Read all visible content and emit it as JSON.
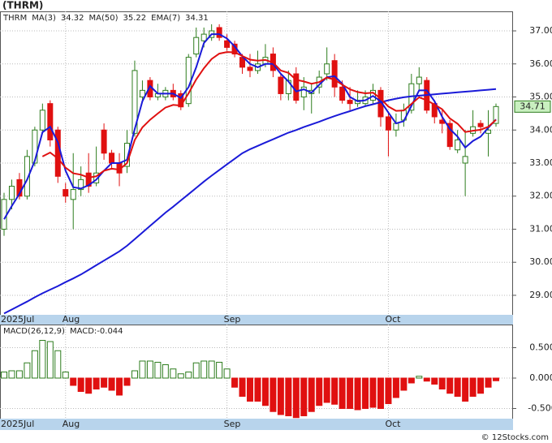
{
  "chart_data": {
    "type": "candlestick",
    "title": "(THRM)",
    "symbol": "THRM",
    "categories": [
      "2025Jul",
      null,
      null,
      null,
      null,
      null,
      null,
      null,
      "Aug",
      null,
      null,
      null,
      null,
      null,
      null,
      null,
      null,
      null,
      null,
      null,
      null,
      null,
      null,
      null,
      null,
      null,
      null,
      null,
      null,
      "Sep",
      null,
      null,
      null,
      null,
      null,
      null,
      null,
      null,
      null,
      null,
      null,
      null,
      null,
      null,
      null,
      null,
      null,
      null,
      null,
      null,
      "Oct",
      null,
      null,
      null,
      null,
      null,
      null,
      null,
      null,
      null,
      null,
      null,
      null,
      null,
      null
    ],
    "open": [
      31.0,
      31.9,
      32.5,
      32.0,
      33.0,
      34.0,
      34.8,
      34.0,
      32.2,
      31.9,
      32.2,
      32.7,
      32.4,
      34.0,
      33.3,
      33.0,
      32.9,
      33.9,
      35.0,
      35.5,
      35.0,
      35.0,
      35.2,
      35.1,
      34.8,
      36.3,
      36.7,
      36.8,
      37.1,
      36.7,
      36.6,
      36.2,
      35.9,
      35.8,
      36.0,
      36.3,
      35.6,
      35.1,
      35.7,
      35.0,
      35.1,
      35.3,
      35.7,
      36.1,
      35.3,
      34.9,
      34.8,
      34.8,
      34.9,
      35.2,
      34.4,
      34.0,
      34.3,
      34.6,
      35.4,
      35.5,
      34.8,
      34.3,
      34.2,
      33.4,
      33.0,
      33.9,
      34.2,
      33.9,
      34.2
    ],
    "high": [
      32.1,
      32.5,
      32.7,
      33.4,
      34.1,
      34.8,
      34.9,
      34.1,
      32.4,
      33.3,
      32.9,
      33.3,
      33.5,
      34.2,
      33.4,
      33.3,
      34.0,
      36.1,
      35.5,
      35.6,
      35.4,
      35.3,
      35.4,
      35.2,
      36.3,
      37.1,
      37.1,
      37.2,
      37.2,
      36.9,
      36.7,
      36.3,
      36.3,
      36.4,
      36.6,
      36.5,
      35.7,
      35.8,
      35.9,
      35.6,
      35.4,
      35.8,
      36.5,
      36.3,
      35.5,
      35.3,
      35.2,
      35.2,
      35.4,
      35.3,
      34.5,
      34.5,
      34.8,
      35.7,
      35.9,
      35.6,
      34.9,
      34.6,
      34.3,
      34.0,
      34.0,
      34.6,
      34.3,
      34.6,
      34.8
    ],
    "low": [
      30.8,
      31.6,
      31.9,
      31.9,
      32.9,
      33.9,
      33.5,
      32.4,
      31.8,
      31.0,
      32.0,
      32.1,
      32.3,
      33.1,
      32.8,
      32.3,
      32.7,
      33.8,
      34.9,
      34.9,
      34.9,
      34.9,
      34.9,
      34.6,
      34.7,
      36.2,
      36.5,
      36.7,
      36.7,
      36.4,
      36.2,
      35.7,
      35.6,
      35.7,
      35.9,
      35.6,
      34.9,
      34.9,
      34.8,
      34.6,
      34.5,
      35.1,
      35.5,
      35.0,
      34.8,
      34.6,
      34.7,
      34.7,
      34.8,
      34.1,
      33.2,
      33.8,
      34.1,
      34.5,
      35.2,
      34.5,
      34.2,
      33.9,
      33.4,
      33.3,
      32.0,
      33.8,
      33.9,
      33.2,
      34.1
    ],
    "close": [
      31.9,
      32.3,
      32.0,
      33.2,
      34.0,
      34.6,
      33.7,
      32.6,
      32.0,
      32.2,
      32.5,
      32.3,
      32.7,
      33.3,
      33.0,
      32.7,
      33.6,
      35.8,
      35.2,
      35.0,
      35.1,
      35.2,
      35.0,
      34.7,
      36.2,
      36.8,
      36.9,
      37.0,
      36.8,
      36.5,
      36.3,
      35.9,
      35.8,
      36.0,
      36.2,
      35.8,
      35.1,
      35.5,
      34.9,
      35.3,
      35.2,
      35.6,
      36.0,
      35.3,
      34.9,
      34.8,
      34.9,
      35.0,
      35.2,
      34.4,
      34.0,
      34.2,
      34.6,
      35.4,
      35.6,
      34.6,
      34.4,
      34.2,
      33.5,
      33.7,
      33.2,
      34.1,
      34.1,
      34.0,
      34.71
    ],
    "up_color": "#2e7d1e",
    "down_color": "#e01010",
    "ylim": [
      28.41,
      37.59
    ],
    "yticks": [
      {
        "value": 29,
        "label": "29.00"
      },
      {
        "value": 30,
        "label": "30.00"
      },
      {
        "value": 31,
        "label": "31.00"
      },
      {
        "value": 32,
        "label": "32.00"
      },
      {
        "value": 33,
        "label": "33.00"
      },
      {
        "value": 34,
        "label": "34.00"
      },
      {
        "value": 35,
        "label": "35.00"
      },
      {
        "value": 36,
        "label": "36.00"
      },
      {
        "value": 37,
        "label": "37.00"
      }
    ],
    "grid": true,
    "lines": [
      {
        "name": "MA(3)",
        "value": 34.32,
        "color": "#1a1ad8",
        "values": [
          31.3,
          31.7,
          32.07,
          32.5,
          33.07,
          33.93,
          34.1,
          33.63,
          32.77,
          32.27,
          32.23,
          32.33,
          32.5,
          32.77,
          33.0,
          33.0,
          33.1,
          34.03,
          34.87,
          35.33,
          35.1,
          35.1,
          35.1,
          34.97,
          35.3,
          35.9,
          36.63,
          36.9,
          36.9,
          36.77,
          36.53,
          36.23,
          36.0,
          35.9,
          36.0,
          36.0,
          35.7,
          35.47,
          35.17,
          35.23,
          35.13,
          35.37,
          35.6,
          35.63,
          35.4,
          35.0,
          34.87,
          34.9,
          35.03,
          34.87,
          34.53,
          34.2,
          34.27,
          34.73,
          35.2,
          35.2,
          34.87,
          34.4,
          34.03,
          33.8,
          33.47,
          33.67,
          33.8,
          34.07,
          34.32
        ]
      },
      {
        "name": "MA(50)",
        "value": 35.22,
        "color": "#1a1ad8",
        "values": [
          28.45,
          28.57,
          28.69,
          28.81,
          28.94,
          29.06,
          29.17,
          29.28,
          29.4,
          29.51,
          29.63,
          29.77,
          29.91,
          30.05,
          30.19,
          30.33,
          30.5,
          30.7,
          30.9,
          31.1,
          31.3,
          31.5,
          31.68,
          31.87,
          32.06,
          32.25,
          32.44,
          32.62,
          32.79,
          32.96,
          33.13,
          33.3,
          33.42,
          33.52,
          33.62,
          33.72,
          33.82,
          33.92,
          34.0,
          34.09,
          34.17,
          34.25,
          34.34,
          34.42,
          34.5,
          34.57,
          34.65,
          34.72,
          34.78,
          34.84,
          34.9,
          34.95,
          34.99,
          35.02,
          35.04,
          35.06,
          35.08,
          35.1,
          35.12,
          35.14,
          35.16,
          35.18,
          35.2,
          35.22,
          35.24
        ]
      },
      {
        "name": "EMA(7)",
        "value": 34.31,
        "color": "#e01010",
        "values": [
          null,
          null,
          null,
          null,
          null,
          33.2,
          33.32,
          33.14,
          32.86,
          32.69,
          32.65,
          32.56,
          32.6,
          32.77,
          32.83,
          32.8,
          33.0,
          33.7,
          34.08,
          34.31,
          34.5,
          34.68,
          34.76,
          34.74,
          35.11,
          35.53,
          35.87,
          36.15,
          36.31,
          36.36,
          36.35,
          36.24,
          36.13,
          36.1,
          36.12,
          36.04,
          35.8,
          35.73,
          35.52,
          35.47,
          35.4,
          35.45,
          35.59,
          35.52,
          35.37,
          35.23,
          35.15,
          35.11,
          35.13,
          34.95,
          34.71,
          34.58,
          34.59,
          34.79,
          34.99,
          34.9,
          34.77,
          34.63,
          34.35,
          34.19,
          33.94,
          33.98,
          34.01,
          34.1,
          34.31
        ]
      }
    ],
    "macd": {
      "type": "bar",
      "legend": "MACD(26,12,9)",
      "label": "MACD:-0.044",
      "values": [
        0.1,
        0.12,
        0.12,
        0.25,
        0.45,
        0.62,
        0.6,
        0.45,
        0.1,
        -0.12,
        -0.22,
        -0.25,
        -0.18,
        -0.15,
        -0.2,
        -0.28,
        -0.12,
        0.12,
        0.28,
        0.28,
        0.26,
        0.22,
        0.15,
        0.07,
        0.1,
        0.25,
        0.28,
        0.28,
        0.26,
        0.15,
        -0.15,
        -0.3,
        -0.38,
        -0.38,
        -0.45,
        -0.55,
        -0.6,
        -0.62,
        -0.65,
        -0.62,
        -0.55,
        -0.45,
        -0.4,
        -0.43,
        -0.5,
        -0.5,
        -0.52,
        -0.5,
        -0.48,
        -0.5,
        -0.42,
        -0.32,
        -0.2,
        -0.08,
        0.03,
        -0.05,
        -0.1,
        -0.18,
        -0.25,
        -0.3,
        -0.38,
        -0.3,
        -0.25,
        -0.15,
        -0.044
      ],
      "ylim": [
        -0.667,
        0.88
      ],
      "yticks": [
        {
          "value": 0.5,
          "label": "0.500"
        },
        {
          "value": 0,
          "label": "0.000"
        },
        {
          "value": -0.5,
          "label": "-0.500"
        }
      ]
    },
    "footer": "© 12Stocks.com"
  }
}
